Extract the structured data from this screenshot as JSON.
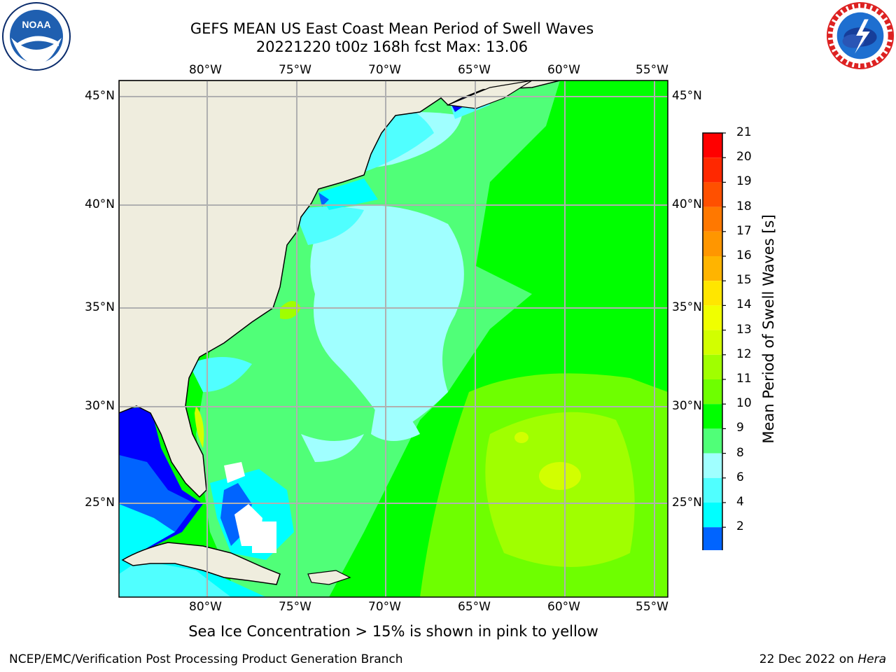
{
  "title": {
    "line1": "GEFS MEAN US East Coast Mean Period of Swell Waves",
    "line2": "20221220 t00z 168h fcst   Max: 13.06"
  },
  "logos": {
    "noaa": {
      "text": "NOAA",
      "ring_text": "NATIONAL OCEANIC AND ATMOSPHERIC ADMINISTRATION · U.S. DEPARTMENT OF COMMERCE"
    },
    "nws": {
      "ring_text": "NATIONAL WEATHER SERVICE"
    }
  },
  "map": {
    "lon_ticks": [
      "80°W",
      "75°W",
      "70°W",
      "65°W",
      "60°W",
      "55°W"
    ],
    "lat_ticks": [
      "45°N",
      "40°N",
      "35°N",
      "30°N",
      "25°N"
    ],
    "land_color": "#efedde",
    "grid_color": "#b0b0b0"
  },
  "colorbar": {
    "title": "Mean Period of Swell Waves [s]",
    "labels": [
      "21",
      "20",
      "19",
      "18",
      "17",
      "16",
      "15",
      "14",
      "13",
      "12",
      "11",
      "10",
      "9",
      "8",
      "6",
      "4",
      "2"
    ],
    "colors": [
      "#ff0000",
      "#ff2800",
      "#ff5000",
      "#ff7800",
      "#ff9600",
      "#ffb400",
      "#ffe600",
      "#f0ff00",
      "#d2ff00",
      "#a0ff00",
      "#6eff00",
      "#00ff00",
      "#50ff78",
      "#a0ffff",
      "#50ffff",
      "#00ffff",
      "#0064ff"
    ],
    "extend_color": "#0000ff"
  },
  "note": "Sea Ice Concentration > 15% is shown in pink to yellow",
  "footer": {
    "left": "NCEP/EMC/Verification Post Processing Product Generation Branch",
    "date": "22 Dec 2022 on ",
    "host": "Hera"
  }
}
